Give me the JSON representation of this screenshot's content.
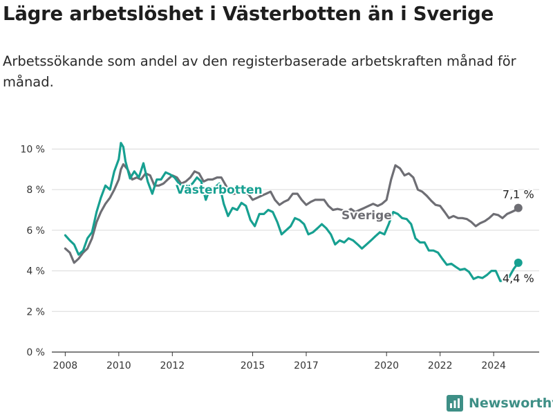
{
  "title": "Lägre arbetslöshet i Västerbotten än i Sverige",
  "subtitle": "Arbetssökande som andel av den registerbaserade arbetskraften månad för månad.",
  "brand": "Newsworthy",
  "colors": {
    "vasterbotten": "#17a091",
    "sverige": "#6e6e74",
    "grid": "#d9d9d9",
    "axis": "#333333",
    "brand": "#3e8f86"
  },
  "chart_data": {
    "type": "line",
    "title": "Lägre arbetslöshet i Västerbotten än i Sverige",
    "subtitle": "Arbetssökande som andel av den registerbaserade arbetskraften månad för månad.",
    "xlabel": "",
    "ylabel": "",
    "x_ticks": [
      2008,
      2010,
      2012,
      2015,
      2017,
      2020,
      2022,
      2024
    ],
    "x_range": [
      2007.5,
      2025.7
    ],
    "y_ticks": [
      0,
      2,
      4,
      6,
      8,
      10
    ],
    "y_tick_labels": [
      "0 %",
      "2 %",
      "4 %",
      "6 %",
      "8 %",
      "10 %"
    ],
    "ylim": [
      0,
      10.8
    ],
    "grid": true,
    "legend": "inline labels",
    "series": [
      {
        "name": "Västerbotten",
        "end_label": "4,4 %",
        "points": [
          [
            2008.0,
            5.75
          ],
          [
            2008.17,
            5.5
          ],
          [
            2008.33,
            5.3
          ],
          [
            2008.5,
            4.8
          ],
          [
            2008.67,
            5.0
          ],
          [
            2008.83,
            5.6
          ],
          [
            2009.0,
            5.9
          ],
          [
            2009.17,
            6.9
          ],
          [
            2009.33,
            7.6
          ],
          [
            2009.5,
            8.2
          ],
          [
            2009.67,
            8.0
          ],
          [
            2009.83,
            8.9
          ],
          [
            2010.0,
            9.5
          ],
          [
            2010.08,
            10.3
          ],
          [
            2010.17,
            10.1
          ],
          [
            2010.25,
            9.4
          ],
          [
            2010.42,
            8.55
          ],
          [
            2010.58,
            8.9
          ],
          [
            2010.75,
            8.6
          ],
          [
            2010.92,
            9.3
          ],
          [
            2011.08,
            8.4
          ],
          [
            2011.25,
            7.8
          ],
          [
            2011.42,
            8.5
          ],
          [
            2011.58,
            8.5
          ],
          [
            2011.75,
            8.85
          ],
          [
            2011.92,
            8.75
          ],
          [
            2012.08,
            8.6
          ],
          [
            2012.25,
            8.3
          ],
          [
            2012.5,
            8.1
          ],
          [
            2012.75,
            8.3
          ],
          [
            2012.92,
            8.6
          ],
          [
            2013.08,
            8.4
          ],
          [
            2013.25,
            7.5
          ],
          [
            2013.42,
            8.1
          ],
          [
            2013.58,
            8.1
          ],
          [
            2013.75,
            8.3
          ],
          [
            2013.92,
            7.3
          ],
          [
            2014.08,
            6.7
          ],
          [
            2014.25,
            7.1
          ],
          [
            2014.42,
            7.0
          ],
          [
            2014.58,
            7.35
          ],
          [
            2014.75,
            7.2
          ],
          [
            2014.92,
            6.5
          ],
          [
            2015.08,
            6.2
          ],
          [
            2015.25,
            6.8
          ],
          [
            2015.42,
            6.8
          ],
          [
            2015.58,
            7.0
          ],
          [
            2015.75,
            6.9
          ],
          [
            2015.92,
            6.4
          ],
          [
            2016.08,
            5.8
          ],
          [
            2016.25,
            6.0
          ],
          [
            2016.42,
            6.2
          ],
          [
            2016.58,
            6.6
          ],
          [
            2016.75,
            6.5
          ],
          [
            2016.92,
            6.3
          ],
          [
            2017.08,
            5.8
          ],
          [
            2017.25,
            5.9
          ],
          [
            2017.42,
            6.1
          ],
          [
            2017.58,
            6.3
          ],
          [
            2017.75,
            6.1
          ],
          [
            2017.92,
            5.8
          ],
          [
            2018.08,
            5.3
          ],
          [
            2018.25,
            5.5
          ],
          [
            2018.42,
            5.4
          ],
          [
            2018.58,
            5.6
          ],
          [
            2018.75,
            5.5
          ],
          [
            2018.92,
            5.3
          ],
          [
            2019.08,
            5.1
          ],
          [
            2019.25,
            5.3
          ],
          [
            2019.42,
            5.5
          ],
          [
            2019.58,
            5.7
          ],
          [
            2019.75,
            5.9
          ],
          [
            2019.92,
            5.8
          ],
          [
            2020.08,
            6.3
          ],
          [
            2020.25,
            6.9
          ],
          [
            2020.42,
            6.8
          ],
          [
            2020.58,
            6.6
          ],
          [
            2020.75,
            6.55
          ],
          [
            2020.92,
            6.3
          ],
          [
            2021.08,
            5.6
          ],
          [
            2021.25,
            5.4
          ],
          [
            2021.42,
            5.4
          ],
          [
            2021.58,
            5.0
          ],
          [
            2021.75,
            5.0
          ],
          [
            2021.92,
            4.9
          ],
          [
            2022.08,
            4.6
          ],
          [
            2022.25,
            4.3
          ],
          [
            2022.42,
            4.35
          ],
          [
            2022.58,
            4.2
          ],
          [
            2022.75,
            4.05
          ],
          [
            2022.92,
            4.1
          ],
          [
            2023.08,
            3.95
          ],
          [
            2023.25,
            3.6
          ],
          [
            2023.42,
            3.7
          ],
          [
            2023.58,
            3.65
          ],
          [
            2023.75,
            3.8
          ],
          [
            2023.92,
            4.0
          ],
          [
            2024.08,
            4.0
          ],
          [
            2024.25,
            3.5
          ],
          [
            2024.42,
            3.55
          ],
          [
            2024.58,
            3.7
          ],
          [
            2024.75,
            4.1
          ],
          [
            2024.92,
            4.4
          ]
        ]
      },
      {
        "name": "Sverige",
        "end_label": "7,1 %",
        "points": [
          [
            2008.0,
            5.1
          ],
          [
            2008.17,
            4.9
          ],
          [
            2008.33,
            4.4
          ],
          [
            2008.5,
            4.6
          ],
          [
            2008.67,
            4.9
          ],
          [
            2008.83,
            5.1
          ],
          [
            2009.0,
            5.6
          ],
          [
            2009.17,
            6.4
          ],
          [
            2009.33,
            6.9
          ],
          [
            2009.5,
            7.3
          ],
          [
            2009.67,
            7.6
          ],
          [
            2009.83,
            8.0
          ],
          [
            2010.0,
            8.5
          ],
          [
            2010.08,
            9.0
          ],
          [
            2010.17,
            9.25
          ],
          [
            2010.33,
            9.0
          ],
          [
            2010.5,
            8.5
          ],
          [
            2010.67,
            8.6
          ],
          [
            2010.83,
            8.5
          ],
          [
            2011.0,
            8.8
          ],
          [
            2011.17,
            8.7
          ],
          [
            2011.33,
            8.2
          ],
          [
            2011.5,
            8.2
          ],
          [
            2011.67,
            8.3
          ],
          [
            2011.83,
            8.5
          ],
          [
            2012.0,
            8.7
          ],
          [
            2012.17,
            8.6
          ],
          [
            2012.33,
            8.3
          ],
          [
            2012.5,
            8.4
          ],
          [
            2012.67,
            8.6
          ],
          [
            2012.83,
            8.9
          ],
          [
            2013.0,
            8.8
          ],
          [
            2013.17,
            8.4
          ],
          [
            2013.33,
            8.5
          ],
          [
            2013.5,
            8.5
          ],
          [
            2013.67,
            8.6
          ],
          [
            2013.83,
            8.6
          ],
          [
            2014.0,
            8.2
          ],
          [
            2014.17,
            7.8
          ],
          [
            2014.33,
            7.8
          ],
          [
            2014.5,
            7.9
          ],
          [
            2014.67,
            7.8
          ],
          [
            2014.83,
            7.8
          ],
          [
            2015.0,
            7.5
          ],
          [
            2015.17,
            7.6
          ],
          [
            2015.33,
            7.7
          ],
          [
            2015.5,
            7.8
          ],
          [
            2015.67,
            7.9
          ],
          [
            2015.83,
            7.5
          ],
          [
            2016.0,
            7.25
          ],
          [
            2016.17,
            7.4
          ],
          [
            2016.33,
            7.5
          ],
          [
            2016.5,
            7.8
          ],
          [
            2016.67,
            7.8
          ],
          [
            2016.83,
            7.5
          ],
          [
            2017.0,
            7.25
          ],
          [
            2017.17,
            7.4
          ],
          [
            2017.33,
            7.5
          ],
          [
            2017.5,
            7.5
          ],
          [
            2017.67,
            7.5
          ],
          [
            2017.83,
            7.2
          ],
          [
            2018.0,
            7.0
          ],
          [
            2018.17,
            7.05
          ],
          [
            2018.33,
            7.0
          ],
          [
            2018.5,
            6.9
          ],
          [
            2018.67,
            7.05
          ],
          [
            2018.83,
            6.9
          ],
          [
            2019.0,
            7.0
          ],
          [
            2019.17,
            7.1
          ],
          [
            2019.33,
            7.2
          ],
          [
            2019.5,
            7.3
          ],
          [
            2019.67,
            7.2
          ],
          [
            2019.83,
            7.3
          ],
          [
            2020.0,
            7.5
          ],
          [
            2020.17,
            8.5
          ],
          [
            2020.33,
            9.2
          ],
          [
            2020.5,
            9.05
          ],
          [
            2020.67,
            8.7
          ],
          [
            2020.83,
            8.8
          ],
          [
            2021.0,
            8.6
          ],
          [
            2021.17,
            8.0
          ],
          [
            2021.33,
            7.9
          ],
          [
            2021.5,
            7.7
          ],
          [
            2021.67,
            7.45
          ],
          [
            2021.83,
            7.25
          ],
          [
            2022.0,
            7.2
          ],
          [
            2022.17,
            6.9
          ],
          [
            2022.33,
            6.6
          ],
          [
            2022.5,
            6.7
          ],
          [
            2022.67,
            6.6
          ],
          [
            2022.83,
            6.6
          ],
          [
            2023.0,
            6.55
          ],
          [
            2023.17,
            6.4
          ],
          [
            2023.33,
            6.2
          ],
          [
            2023.5,
            6.35
          ],
          [
            2023.67,
            6.45
          ],
          [
            2023.83,
            6.6
          ],
          [
            2024.0,
            6.8
          ],
          [
            2024.17,
            6.75
          ],
          [
            2024.33,
            6.6
          ],
          [
            2024.5,
            6.8
          ],
          [
            2024.67,
            6.9
          ],
          [
            2024.83,
            7.0
          ],
          [
            2024.92,
            7.1
          ]
        ]
      }
    ]
  }
}
